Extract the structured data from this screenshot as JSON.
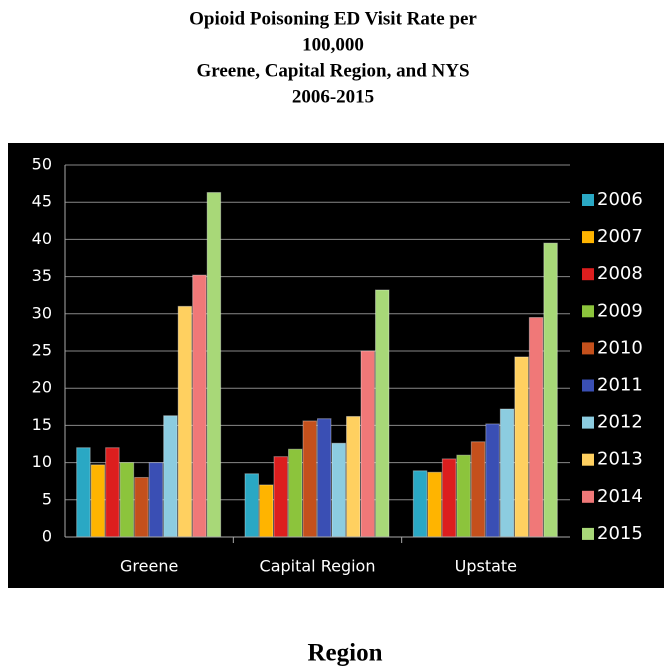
{
  "chart_data": {
    "type": "bar",
    "title": [
      "Opioid Poisoning ED Visit Rate per",
      "100,000",
      "Greene, Capital Region, and NYS",
      "2006-2015"
    ],
    "x_label": "Region",
    "categories": [
      "Greene",
      "Capital Region",
      "Upstate"
    ],
    "series": [
      {
        "name": "2006",
        "color": "#2aa8c4",
        "values": [
          12,
          8.5,
          8.9
        ]
      },
      {
        "name": "2007",
        "color": "#ffb400",
        "values": [
          9.7,
          7,
          8.7
        ]
      },
      {
        "name": "2008",
        "color": "#dc1e1e",
        "values": [
          12,
          10.8,
          10.5
        ]
      },
      {
        "name": "2009",
        "color": "#8cc43c",
        "values": [
          10,
          11.8,
          11
        ]
      },
      {
        "name": "2010",
        "color": "#c4501c",
        "values": [
          8,
          15.6,
          12.8
        ]
      },
      {
        "name": "2011",
        "color": "#3a4fb4",
        "values": [
          10,
          15.9,
          15.2
        ]
      },
      {
        "name": "2012",
        "color": "#8ccce0",
        "values": [
          16.3,
          12.6,
          17.2
        ]
      },
      {
        "name": "2013",
        "color": "#ffd060",
        "values": [
          31,
          16.2,
          24.2
        ]
      },
      {
        "name": "2014",
        "color": "#f07878",
        "values": [
          35.2,
          25,
          29.5
        ]
      },
      {
        "name": "2015",
        "color": "#a8d878",
        "values": [
          46.3,
          33.2,
          39.5
        ]
      }
    ],
    "ylim": [
      0,
      50
    ],
    "yticks": [
      0,
      5,
      10,
      15,
      20,
      25,
      30,
      35,
      40,
      45,
      50
    ],
    "grid": true,
    "legend": "right"
  }
}
